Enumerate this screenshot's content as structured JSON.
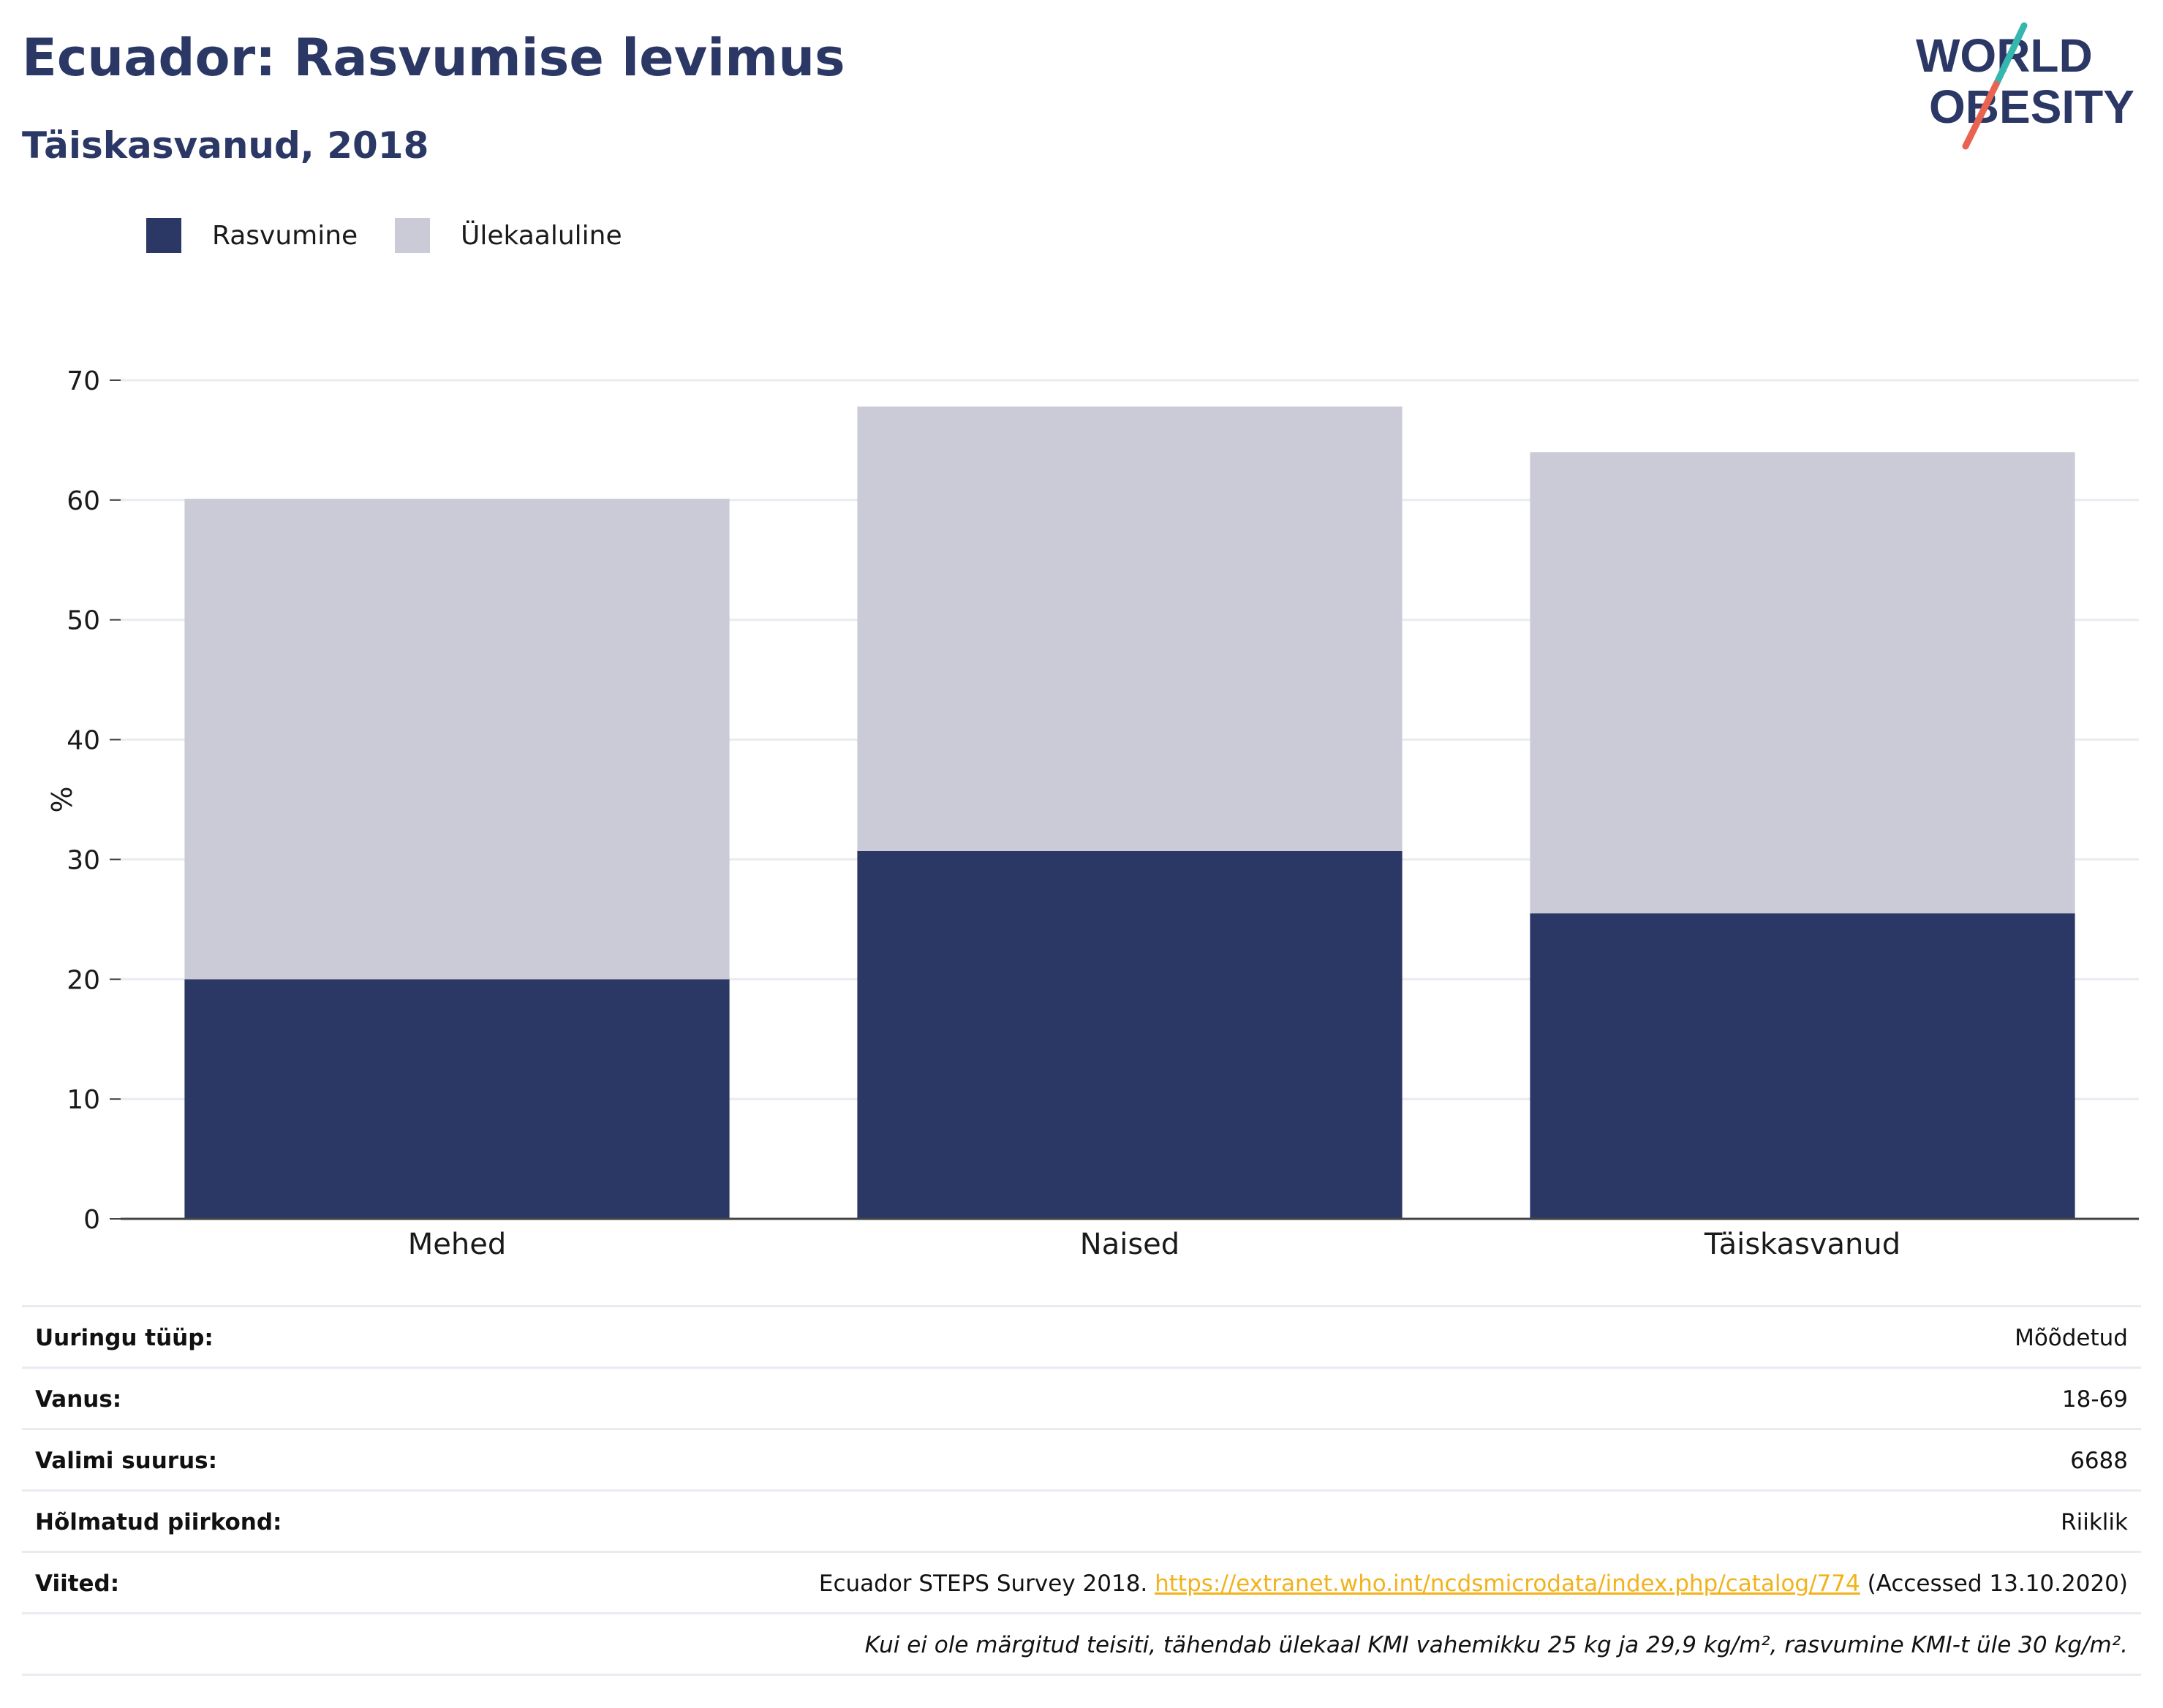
{
  "header": {
    "title": "Ecuador: Rasvumise levimus",
    "subtitle": "Täiskasvanud, 2018"
  },
  "logo": {
    "line1": "WORLD",
    "line2": "OBESITY",
    "colors": {
      "text": "#2b3764",
      "slash_top": "#35b7b0",
      "slash_bottom": "#ea6352"
    }
  },
  "legend": [
    {
      "label": "Rasvumine",
      "color": "#2b3764"
    },
    {
      "label": "Ülekaaluline",
      "color": "#cacbd7"
    }
  ],
  "chart_data": {
    "type": "bar",
    "stacked": true,
    "categories": [
      "Mehed",
      "Naised",
      "Täiskasvanud"
    ],
    "series": [
      {
        "name": "Rasvumine",
        "values": [
          20.0,
          30.7,
          25.5
        ],
        "color": "#2b3764"
      },
      {
        "name": "Ülekaaluline",
        "values": [
          40.1,
          37.1,
          38.5
        ],
        "color": "#cacbd7"
      }
    ],
    "ylabel": "%",
    "ylim": [
      0,
      70
    ],
    "yticks": [
      0,
      10,
      20,
      30,
      40,
      50,
      60,
      70
    ],
    "grid": true,
    "legend_position": "top-left"
  },
  "info": {
    "rows": [
      {
        "label": "Uuringu tüüp:",
        "value": "Mõõdetud"
      },
      {
        "label": "Vanus:",
        "value": "18-69"
      },
      {
        "label": "Valimi suurus:",
        "value": "6688"
      },
      {
        "label": "Hõlmatud piirkond:",
        "value": "Riiklik"
      }
    ],
    "reference": {
      "label": "Viited:",
      "text_before": "Ecuador STEPS Survey 2018. ",
      "link": "https://extranet.who.int/ncdsmicrodata/index.php/catalog/774",
      "text_after": " (Accessed 13.10.2020)"
    },
    "note": "Kui ei ole märgitud teisiti, tähendab ülekaal KMI vahemikku 25 kg ja 29,9 kg/m², rasvumine KMI-t üle 30 kg/m²."
  }
}
